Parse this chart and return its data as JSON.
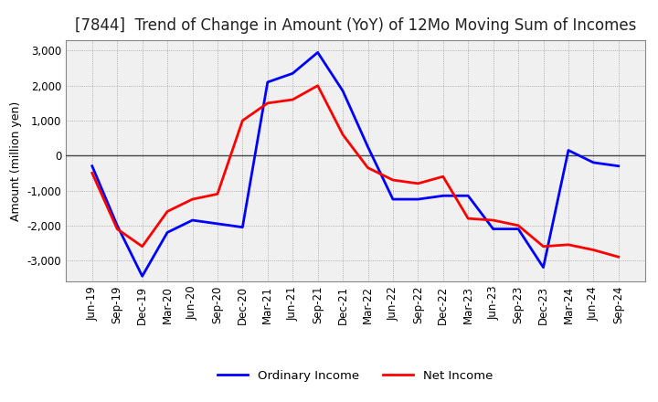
{
  "title": "[7844]  Trend of Change in Amount (YoY) of 12Mo Moving Sum of Incomes",
  "ylabel": "Amount (million yen)",
  "ylim": [
    -3600,
    3300
  ],
  "yticks": [
    -3000,
    -2000,
    -1000,
    0,
    1000,
    2000,
    3000
  ],
  "legend_labels": [
    "Ordinary Income",
    "Net Income"
  ],
  "line_colors": [
    "#0000ff",
    "#ff0000"
  ],
  "x_labels": [
    "Jun-19",
    "Sep-19",
    "Dec-19",
    "Mar-20",
    "Jun-20",
    "Sep-20",
    "Dec-20",
    "Mar-21",
    "Jun-21",
    "Sep-21",
    "Dec-21",
    "Mar-22",
    "Jun-22",
    "Sep-22",
    "Dec-22",
    "Mar-23",
    "Jun-23",
    "Sep-23",
    "Dec-23",
    "Mar-24",
    "Jun-24",
    "Sep-24"
  ],
  "ordinary_income": [
    -300,
    -2000,
    -3450,
    -2200,
    -1850,
    -1950,
    -2050,
    2100,
    2350,
    2950,
    1850,
    250,
    -1250,
    -1250,
    -1150,
    -1150,
    -2100,
    -2100,
    -3200,
    150,
    -200,
    -300
  ],
  "net_income": [
    -500,
    -2100,
    -2600,
    -1600,
    -1250,
    -1100,
    1000,
    1500,
    1600,
    2000,
    600,
    -350,
    -700,
    -800,
    -600,
    -1800,
    -1850,
    -2000,
    -2600,
    -2550,
    -2700,
    -2900
  ],
  "background_color": "#ffffff",
  "plot_bg_color": "#f0f0f0",
  "grid_color": "#999999",
  "title_fontsize": 12,
  "axis_fontsize": 9,
  "tick_fontsize": 8.5,
  "line_width": 2.0
}
